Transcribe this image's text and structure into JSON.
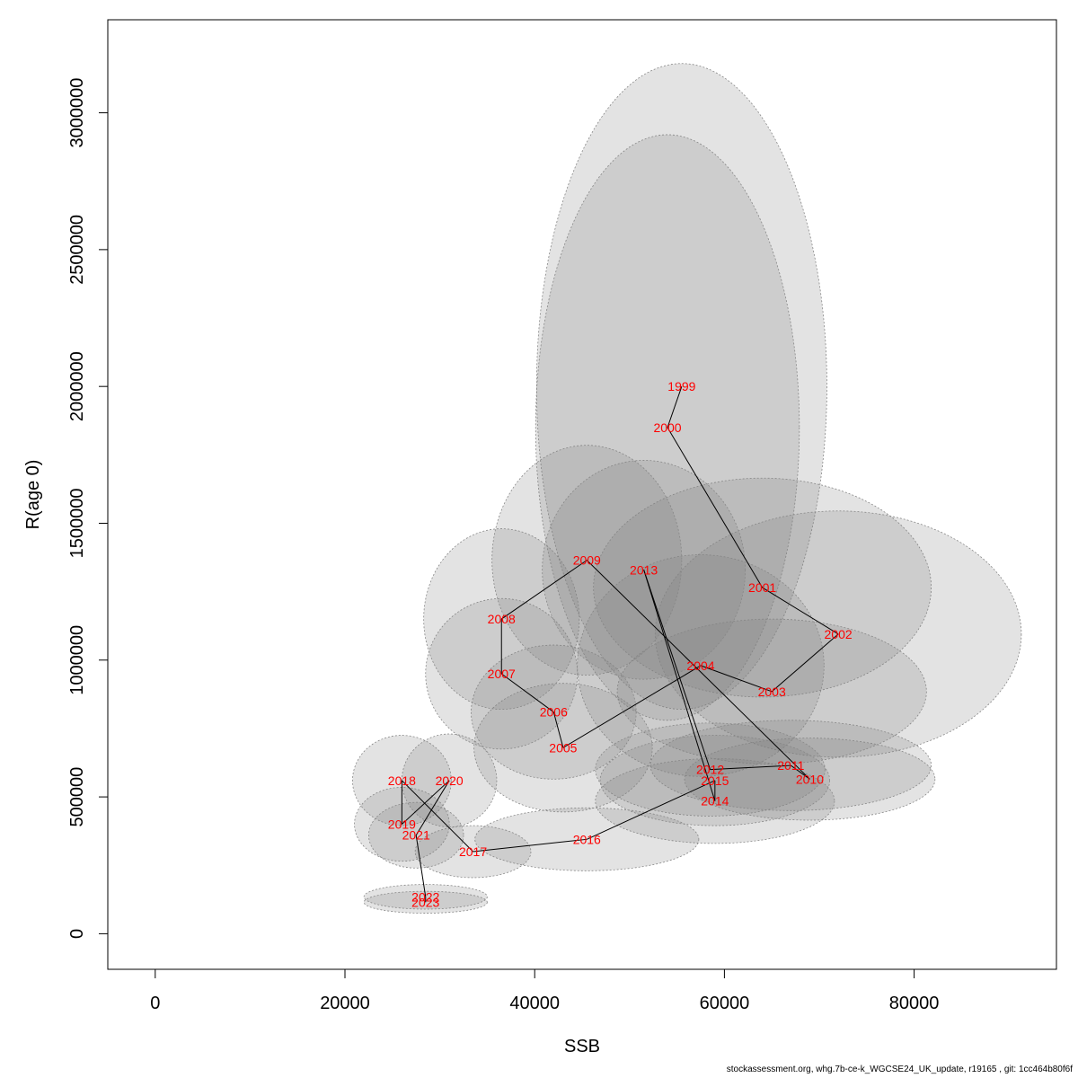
{
  "chart_data": {
    "type": "scatter",
    "xlabel": "SSB",
    "ylabel": "R(age 0)",
    "xlim": [
      -5000,
      95000
    ],
    "ylim": [
      -130000,
      3340000
    ],
    "x_ticks": [
      0,
      20000,
      40000,
      60000,
      80000
    ],
    "y_ticks": [
      0,
      500000,
      1000000,
      1500000,
      2000000,
      2500000,
      3000000
    ],
    "label_color": "#ff0000",
    "points": [
      {
        "year": "1999",
        "ssb": 55500,
        "r": 2000000,
        "ew": 15300,
        "eh": 1180000
      },
      {
        "year": "2000",
        "ssb": 54000,
        "r": 1850000,
        "ew": 13900,
        "eh": 1070000
      },
      {
        "year": "2001",
        "ssb": 64000,
        "r": 1265000,
        "ew": 17800,
        "eh": 400000
      },
      {
        "year": "2002",
        "ssb": 72000,
        "r": 1095000,
        "ew": 19300,
        "eh": 450000
      },
      {
        "year": "2003",
        "ssb": 65000,
        "r": 885000,
        "ew": 16300,
        "eh": 265000
      },
      {
        "year": "2004",
        "ssb": 57500,
        "r": 980000,
        "ew": 13000,
        "eh": 405000
      },
      {
        "year": "2005",
        "ssb": 43000,
        "r": 680000,
        "ew": 9400,
        "eh": 235000
      },
      {
        "year": "2006",
        "ssb": 42000,
        "r": 810000,
        "ew": 8700,
        "eh": 245000
      },
      {
        "year": "2007",
        "ssb": 36500,
        "r": 950000,
        "ew": 8000,
        "eh": 275000
      },
      {
        "year": "2008",
        "ssb": 36500,
        "r": 1150000,
        "ew": 8200,
        "eh": 330000
      },
      {
        "year": "2009",
        "ssb": 45500,
        "r": 1365000,
        "ew": 10000,
        "eh": 420000
      },
      {
        "year": "2010",
        "ssb": 69000,
        "r": 565000,
        "ew": 13200,
        "eh": 150000
      },
      {
        "year": "2011",
        "ssb": 67000,
        "r": 615000,
        "ew": 14800,
        "eh": 165000
      },
      {
        "year": "2012",
        "ssb": 58500,
        "r": 600000,
        "ew": 12100,
        "eh": 170000
      },
      {
        "year": "2013",
        "ssb": 51500,
        "r": 1330000,
        "ew": 10700,
        "eh": 400000
      },
      {
        "year": "2014",
        "ssb": 59000,
        "r": 485000,
        "ew": 12600,
        "eh": 155000
      },
      {
        "year": "2015",
        "ssb": 59000,
        "r": 560000,
        "ew": 12100,
        "eh": 165000
      },
      {
        "year": "2016",
        "ssb": 45500,
        "r": 345000,
        "ew": 11800,
        "eh": 115000
      },
      {
        "year": "2017",
        "ssb": 33500,
        "r": 300000,
        "ew": 6100,
        "eh": 95000
      },
      {
        "year": "2018",
        "ssb": 26000,
        "r": 560000,
        "ew": 5200,
        "eh": 165000
      },
      {
        "year": "2019",
        "ssb": 26000,
        "r": 400000,
        "ew": 5000,
        "eh": 135000
      },
      {
        "year": "2020",
        "ssb": 31000,
        "r": 560000,
        "ew": 5000,
        "eh": 170000
      },
      {
        "year": "2021",
        "ssb": 27500,
        "r": 360000,
        "ew": 5000,
        "eh": 120000
      },
      {
        "year": "2022",
        "ssb": 28500,
        "r": 135000,
        "ew": 6500,
        "eh": 45000
      },
      {
        "year": "2023",
        "ssb": 28500,
        "r": 115000,
        "ew": 6500,
        "eh": 40000
      }
    ]
  },
  "footer": "stockassessment.org, whg.7b-ce-k_WGCSE24_UK_update, r19165 , git: 1cc464b80f6f"
}
